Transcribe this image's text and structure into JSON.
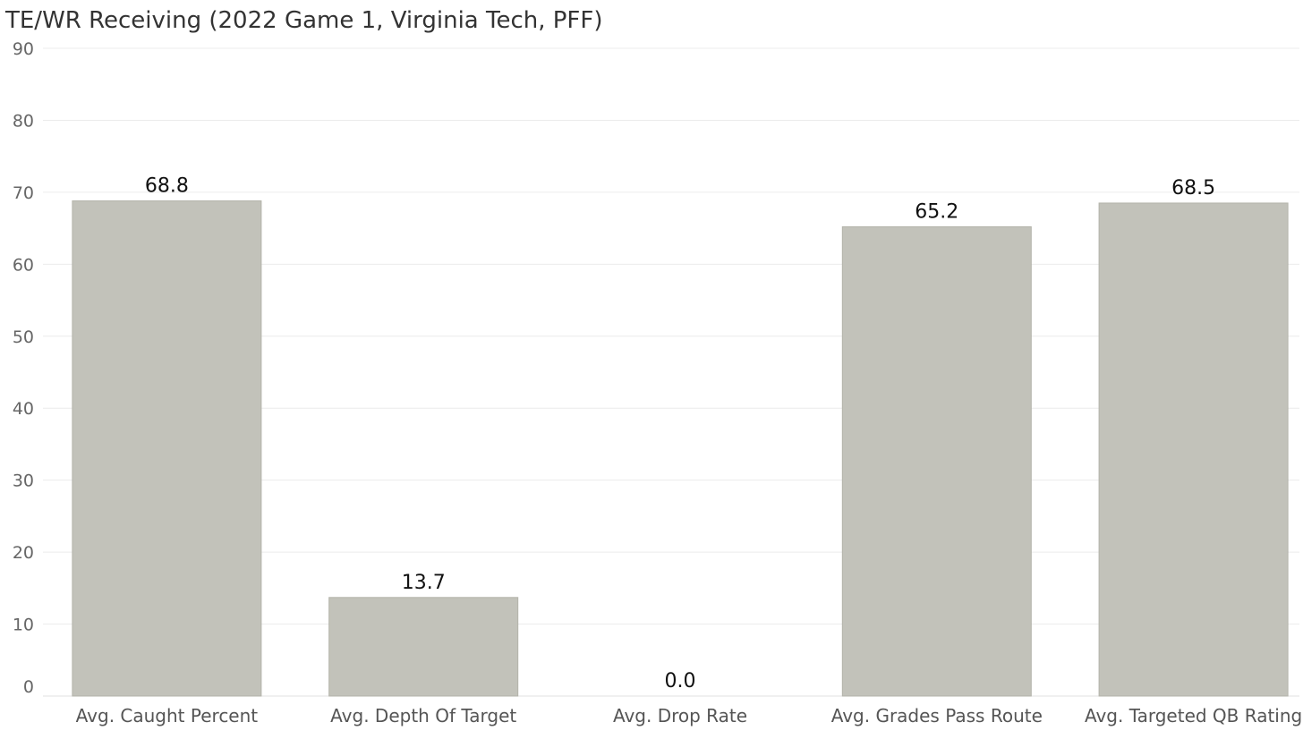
{
  "chart_data": {
    "type": "bar",
    "title": "TE/WR Receiving (2022 Game 1, Virginia Tech, PFF)",
    "categories": [
      "Avg. Caught Percent",
      "Avg. Depth Of Target",
      "Avg. Drop Rate",
      "Avg. Grades Pass Route",
      "Avg. Targeted QB Rating"
    ],
    "values": [
      68.8,
      13.7,
      0.0,
      65.2,
      68.5
    ],
    "value_labels": [
      "68.8",
      "13.7",
      "0.0",
      "65.2",
      "68.5"
    ],
    "yticks": [
      0,
      10,
      20,
      30,
      40,
      50,
      60,
      70,
      80,
      90
    ],
    "ylim": [
      0,
      90
    ],
    "grid": true,
    "bar_color": "#c2c2ba"
  }
}
